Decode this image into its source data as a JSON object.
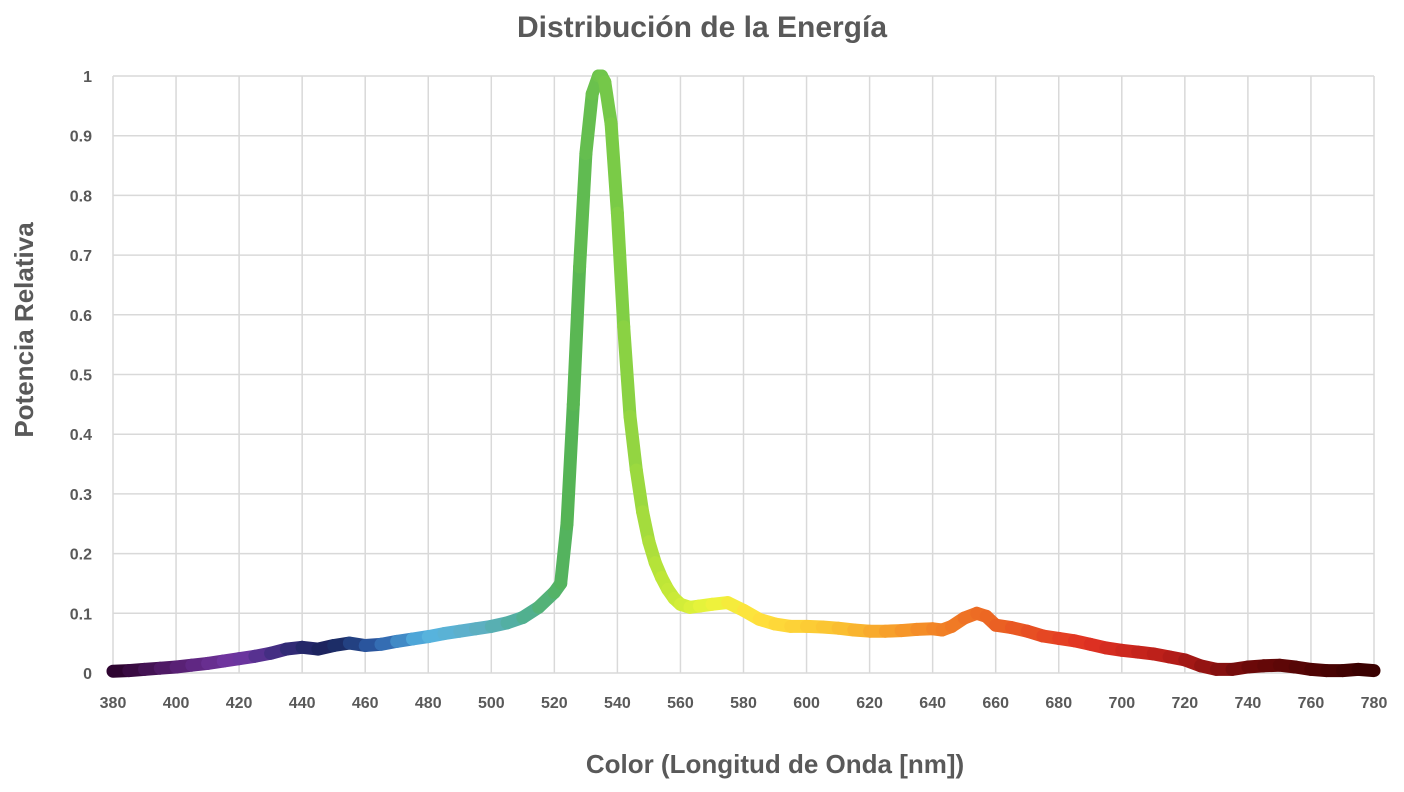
{
  "chart_data": {
    "type": "line",
    "title": "Distribución de la Energía",
    "xlabel": "Color (Longitud de Onda [nm])",
    "ylabel": "Potencia Relativa",
    "xlim": [
      380,
      780
    ],
    "ylim": [
      0,
      1
    ],
    "x_ticks": [
      "380",
      "400",
      "420",
      "440",
      "460",
      "480",
      "500",
      "520",
      "540",
      "560",
      "580",
      "600",
      "620",
      "640",
      "660",
      "680",
      "700",
      "720",
      "740",
      "760",
      "780"
    ],
    "y_ticks": [
      "0",
      "0.1",
      "0.2",
      "0.3",
      "0.4",
      "0.5",
      "0.6",
      "0.7",
      "0.8",
      "0.9",
      "1"
    ],
    "grid": true,
    "legend": "none",
    "series": [
      {
        "x": [
          380,
          385,
          390,
          395,
          400,
          405,
          410,
          415,
          420,
          425,
          430,
          435,
          440,
          445,
          450,
          455,
          460,
          465,
          470,
          475,
          480,
          485,
          490,
          495,
          500,
          505,
          510,
          515,
          520,
          522,
          524,
          526,
          528,
          530,
          532,
          534,
          535,
          536,
          538,
          540,
          542,
          544,
          546,
          548,
          550,
          552,
          554,
          556,
          558,
          560,
          563,
          566,
          570,
          575,
          580,
          585,
          590,
          595,
          600,
          605,
          610,
          615,
          620,
          625,
          630,
          635,
          640,
          643,
          646,
          650,
          654,
          657,
          660,
          665,
          670,
          675,
          680,
          685,
          690,
          695,
          700,
          705,
          710,
          715,
          720,
          725,
          730,
          735,
          740,
          745,
          750,
          755,
          760,
          765,
          770,
          775,
          780
        ],
        "y": [
          0.003,
          0.004,
          0.006,
          0.008,
          0.01,
          0.013,
          0.016,
          0.02,
          0.024,
          0.028,
          0.033,
          0.04,
          0.043,
          0.04,
          0.046,
          0.05,
          0.046,
          0.048,
          0.053,
          0.057,
          0.061,
          0.066,
          0.07,
          0.074,
          0.078,
          0.084,
          0.093,
          0.11,
          0.135,
          0.15,
          0.25,
          0.45,
          0.68,
          0.87,
          0.97,
          1.0,
          1.0,
          0.99,
          0.92,
          0.77,
          0.58,
          0.43,
          0.34,
          0.27,
          0.22,
          0.185,
          0.16,
          0.14,
          0.125,
          0.115,
          0.11,
          0.112,
          0.115,
          0.118,
          0.105,
          0.09,
          0.082,
          0.078,
          0.078,
          0.077,
          0.075,
          0.072,
          0.07,
          0.07,
          0.071,
          0.073,
          0.074,
          0.072,
          0.078,
          0.092,
          0.1,
          0.095,
          0.08,
          0.076,
          0.07,
          0.062,
          0.058,
          0.054,
          0.048,
          0.042,
          0.038,
          0.035,
          0.032,
          0.027,
          0.022,
          0.012,
          0.006,
          0.006,
          0.01,
          0.012,
          0.013,
          0.01,
          0.006,
          0.004,
          0.004,
          0.006,
          0.004
        ]
      }
    ]
  }
}
